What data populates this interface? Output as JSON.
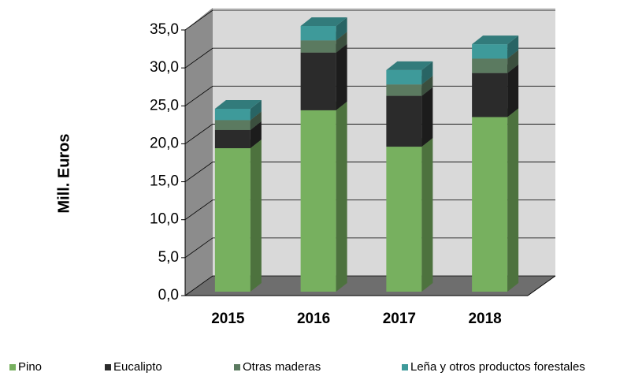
{
  "chart_data": {
    "type": "bar",
    "stacked": true,
    "y_label": "Mill.  Euros",
    "categories": [
      "2015",
      "2016",
      "2017",
      "2018"
    ],
    "series": [
      {
        "name": "Pino",
        "color": "#77b05f",
        "values": [
          18.9,
          23.9,
          19.1,
          23.0
        ]
      },
      {
        "name": "Eucalipto",
        "color": "#2b2b2b",
        "values": [
          2.4,
          7.6,
          6.7,
          5.8
        ]
      },
      {
        "name": "Otras maderas",
        "color": "#5b7a60",
        "values": [
          1.3,
          1.6,
          1.5,
          1.9
        ]
      },
      {
        "name": "Leña y otros productos forestales",
        "color": "#3e9a9a",
        "values": [
          1.5,
          1.9,
          1.9,
          1.9
        ]
      }
    ],
    "ylim": [
      0,
      35
    ],
    "yticks": [
      {
        "value": 0,
        "label": "0,0"
      },
      {
        "value": 5,
        "label": "5,0"
      },
      {
        "value": 10,
        "label": "10,0"
      },
      {
        "value": 15,
        "label": "15,0"
      },
      {
        "value": 20,
        "label": "20,0"
      },
      {
        "value": 25,
        "label": "25,0"
      },
      {
        "value": 30,
        "label": "30,0"
      },
      {
        "value": 35,
        "label": "35,0"
      }
    ],
    "grid": true,
    "legend": "bottom"
  }
}
